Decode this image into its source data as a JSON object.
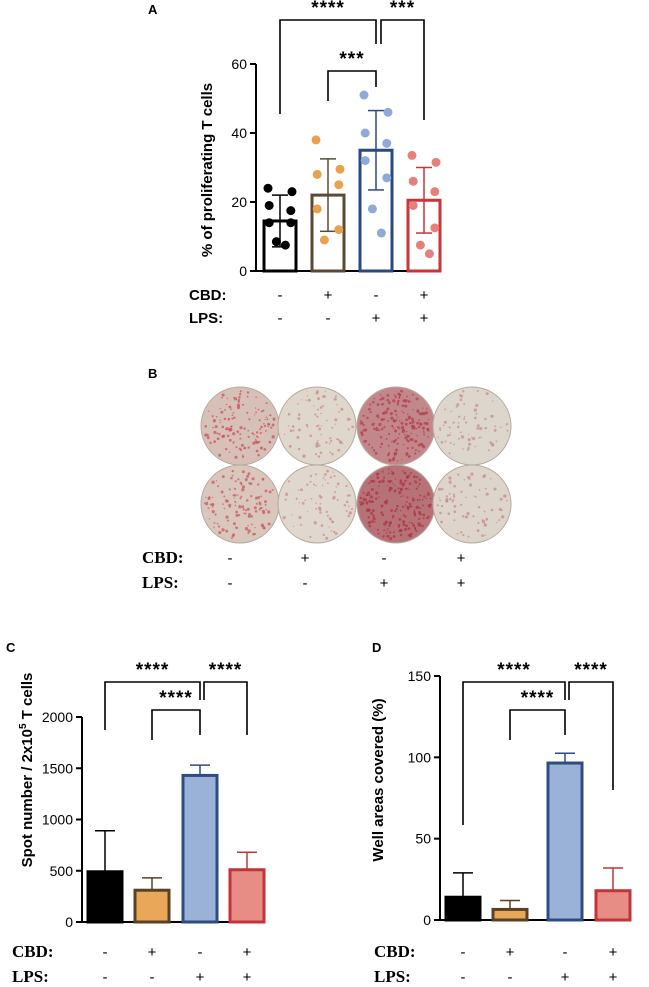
{
  "colors": {
    "control": "#000000",
    "cbd": "#e8a24e",
    "lps": "#8faad8",
    "cbd_lps": "#e7807b",
    "bar_a_edge": [
      "#000000",
      "#5b4a32",
      "#2a4a7f",
      "#c8343a"
    ],
    "bar_cd_fill": [
      "#000000",
      "#e9a859",
      "#9ab2d8",
      "#e88c86"
    ],
    "bar_cd_edge": [
      "#000000",
      "#5a4124",
      "#2d4d80",
      "#c2343a"
    ]
  },
  "conditions": {
    "cbd_label": "CBD:",
    "lps_label": "LPS:",
    "cbd": [
      "-",
      "+",
      "-",
      "+"
    ],
    "lps": [
      "-",
      "-",
      "+",
      "+"
    ]
  },
  "chart_data": [
    {
      "panel": "A",
      "type": "bar",
      "ylabel": "% of proliferating T cells",
      "ylim": [
        0,
        60
      ],
      "yticks": [
        0,
        20,
        40,
        60
      ],
      "categories": [
        "CBD- LPS-",
        "CBD+ LPS-",
        "CBD- LPS+",
        "CBD+ LPS+"
      ],
      "values": [
        14.5,
        22,
        35,
        20.5
      ],
      "sd": [
        7.5,
        10.5,
        11.5,
        9.5
      ],
      "points": [
        [
          24,
          23,
          19,
          17.5,
          14,
          14,
          8.5,
          7.5
        ],
        [
          38,
          29.5,
          28,
          25,
          18,
          12,
          9
        ],
        [
          51,
          46,
          40,
          37,
          32,
          27,
          18,
          11
        ],
        [
          33.5,
          31.5,
          26,
          23,
          19,
          12.5,
          7.5,
          5
        ]
      ],
      "comparisons": [
        {
          "from": 0,
          "to": 2,
          "label": "****"
        },
        {
          "from": 2,
          "to": 3,
          "label": "***"
        },
        {
          "from": 1,
          "to": 2,
          "label": "***"
        }
      ]
    },
    {
      "panel": "C",
      "type": "bar",
      "ylabel": "Spot number / 2x10",
      "ylabel_sup": "5",
      "ylabel_tail": " T cells",
      "ylim": [
        0,
        2000
      ],
      "yticks": [
        0,
        500,
        1000,
        1500,
        2000
      ],
      "categories": [
        "CBD- LPS-",
        "CBD+ LPS-",
        "CBD- LPS+",
        "CBD+ LPS+"
      ],
      "values": [
        490,
        310,
        1430,
        510
      ],
      "sd_upper": [
        400,
        120,
        100,
        170
      ],
      "comparisons": [
        {
          "from": 0,
          "to": 2,
          "label": "****"
        },
        {
          "from": 2,
          "to": 3,
          "label": "****"
        },
        {
          "from": 1,
          "to": 2,
          "label": "****"
        }
      ]
    },
    {
      "panel": "D",
      "type": "bar",
      "ylabel": "Well areas covered (%)",
      "ylim": [
        0,
        150
      ],
      "yticks": [
        0,
        50,
        100,
        150
      ],
      "categories": [
        "CBD- LPS-",
        "CBD+ LPS-",
        "CBD- LPS+",
        "CBD+ LPS+"
      ],
      "values": [
        14,
        6.5,
        96.5,
        18
      ],
      "sd_upper": [
        15,
        5.5,
        6,
        14
      ],
      "comparisons": [
        {
          "from": 0,
          "to": 2,
          "label": "****"
        },
        {
          "from": 2,
          "to": 3,
          "label": "****"
        },
        {
          "from": 1,
          "to": 2,
          "label": "****"
        }
      ]
    }
  ],
  "panel_b": {
    "label": "B",
    "wells": [
      {
        "row": 1,
        "col": 1,
        "color": "#d7c0b8",
        "spots": "#c8545d",
        "density": 0.55
      },
      {
        "row": 1,
        "col": 2,
        "color": "#dfd6cc",
        "spots": "#cc8a8c",
        "density": 0.22
      },
      {
        "row": 1,
        "col": 3,
        "color": "#c2878b",
        "spots": "#b23e4d",
        "density": 0.95
      },
      {
        "row": 1,
        "col": 4,
        "color": "#ddd6cd",
        "spots": "#c88d8f",
        "density": 0.18
      },
      {
        "row": 2,
        "col": 1,
        "color": "#d9c6bc",
        "spots": "#c95a62",
        "density": 0.5
      },
      {
        "row": 2,
        "col": 2,
        "color": "#e0d8ce",
        "spots": "#cd8e90",
        "density": 0.2
      },
      {
        "row": 2,
        "col": 3,
        "color": "#b77277",
        "spots": "#a93544",
        "density": 1.0
      },
      {
        "row": 2,
        "col": 4,
        "color": "#ddd5cc",
        "spots": "#c68a8c",
        "density": 0.2
      }
    ]
  }
}
